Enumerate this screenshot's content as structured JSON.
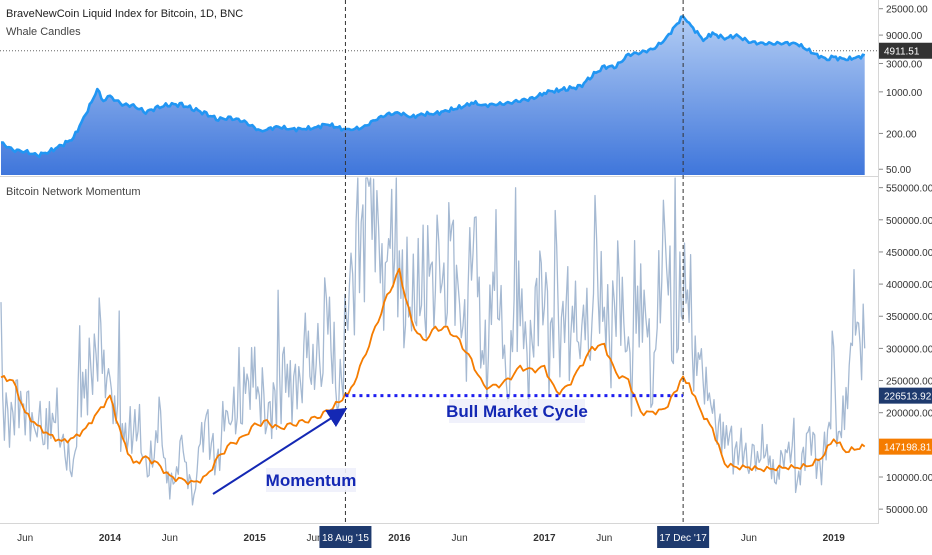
{
  "header": {
    "title": "BraveNewCoin Liquid Index for Bitcoin, 1D, BNC",
    "subtitle": "Whale Candles"
  },
  "lower_pane": {
    "title": "Bitcoin Network Momentum"
  },
  "colors": {
    "price_line": "#2196f3",
    "price_fill_top": "#b3cdf4",
    "price_fill_bottom": "#3f76db",
    "momentum_raw": "#a5b9d2",
    "momentum_ma": "#f57c00",
    "annotation": "#1428b4",
    "axis_label_dark": "#333333",
    "momentum_badge": "#f57c00",
    "level_badge": "#1e3a6e"
  },
  "annotations": {
    "momentum_label": "Momentum",
    "bull_label": "Bull Market Cycle",
    "vline_1_label": "18 Aug '15",
    "vline_2_label": "17 Dec '17"
  },
  "chart_data": [
    {
      "type": "area",
      "title": "BraveNewCoin Liquid Index for Bitcoin, 1D, BNC",
      "subtitle": "Whale Candles",
      "yscale": "log",
      "yticks": [
        "25000.00",
        "9000.00",
        "3000.00",
        "1000.00",
        "200.00",
        "50.00"
      ],
      "ytick_values": [
        25000,
        9000,
        3000,
        1000,
        200,
        50
      ],
      "last_value_label": "4911.51",
      "last_value": 4911.51,
      "x": [
        "2013-04-01",
        "2013-05-01",
        "2013-06-01",
        "2013-07-01",
        "2013-08-01",
        "2013-09-01",
        "2013-10-01",
        "2013-11-01",
        "2013-11-30",
        "2013-12-15",
        "2014-01-01",
        "2014-02-01",
        "2014-03-01",
        "2014-04-01",
        "2014-05-01",
        "2014-06-01",
        "2014-07-01",
        "2014-08-01",
        "2014-09-01",
        "2014-10-01",
        "2014-11-01",
        "2014-12-01",
        "2015-01-15",
        "2015-02-01",
        "2015-03-01",
        "2015-04-01",
        "2015-05-01",
        "2015-06-01",
        "2015-07-01",
        "2015-08-18",
        "2015-09-01",
        "2015-10-01",
        "2015-11-01",
        "2015-12-01",
        "2016-01-01",
        "2016-02-01",
        "2016-03-01",
        "2016-04-01",
        "2016-05-01",
        "2016-06-15",
        "2016-07-01",
        "2016-08-01",
        "2016-09-01",
        "2016-10-01",
        "2016-11-01",
        "2016-12-01",
        "2017-01-05",
        "2017-02-01",
        "2017-03-01",
        "2017-04-01",
        "2017-05-01",
        "2017-06-01",
        "2017-07-01",
        "2017-08-01",
        "2017-09-01",
        "2017-10-01",
        "2017-11-01",
        "2017-12-17",
        "2018-01-01",
        "2018-02-06",
        "2018-03-01",
        "2018-04-01",
        "2018-05-01",
        "2018-06-01",
        "2018-07-01",
        "2018-08-01",
        "2018-09-01",
        "2018-10-01",
        "2018-11-15",
        "2018-12-15",
        "2019-01-01",
        "2019-02-01",
        "2019-03-01",
        "2019-03-20"
      ],
      "values": [
        140,
        105,
        100,
        85,
        100,
        125,
        170,
        420,
        1100,
        720,
        830,
        620,
        580,
        460,
        540,
        620,
        600,
        520,
        420,
        350,
        360,
        330,
        220,
        235,
        260,
        235,
        240,
        245,
        290,
        230,
        235,
        250,
        340,
        420,
        440,
        380,
        420,
        435,
        480,
        580,
        670,
        590,
        620,
        640,
        720,
        760,
        1000,
        1050,
        1150,
        1200,
        1900,
        2600,
        2700,
        4200,
        4600,
        5200,
        7500,
        19000,
        14000,
        7500,
        9500,
        8000,
        8800,
        7000,
        6500,
        6500,
        6600,
        6400,
        4300,
        3500,
        3800,
        3500,
        3800,
        4100
      ],
      "xlim": [
        "2013-04-01",
        "2019-04-05"
      ],
      "ylim": [
        40,
        30000
      ]
    },
    {
      "type": "line",
      "title": "Bitcoin Network Momentum",
      "yticks": [
        "550000.00",
        "500000.00",
        "450000.00",
        "400000.00",
        "350000.00",
        "300000.00",
        "250000.00",
        "200000.00",
        "150000.00",
        "100000.00",
        "50000.00"
      ],
      "ytick_values": [
        550000,
        500000,
        450000,
        400000,
        350000,
        300000,
        250000,
        200000,
        150000,
        100000,
        50000
      ],
      "value_labels": [
        {
          "text": "226513.92",
          "value": 226513.92
        },
        {
          "text": "147198.81",
          "value": 147198.81
        }
      ],
      "x_labels": [
        "Jun",
        "2014",
        "Jun",
        "2015",
        "Jun",
        "2016",
        "Jun",
        "2017",
        "Jun",
        "Jun",
        "2019"
      ],
      "x_label_dates": [
        "2013-06-01",
        "2014-01-01",
        "2014-06-01",
        "2015-01-01",
        "2015-06-01",
        "2016-01-01",
        "2016-06-01",
        "2017-01-01",
        "2017-06-01",
        "2018-06-01",
        "2019-01-01"
      ],
      "series": [
        {
          "kind": "raw",
          "x": [
            "2013-04-01",
            "2013-05-01",
            "2013-06-01",
            "2013-07-01",
            "2013-08-01",
            "2013-09-01",
            "2013-10-01",
            "2013-11-01",
            "2013-12-01",
            "2014-01-01",
            "2014-02-01",
            "2014-03-01",
            "2014-04-01",
            "2014-05-01",
            "2014-06-01",
            "2014-07-01",
            "2014-08-01",
            "2014-09-01",
            "2014-10-01",
            "2014-11-01",
            "2014-12-01",
            "2015-01-01",
            "2015-02-01",
            "2015-03-01",
            "2015-04-01",
            "2015-05-01",
            "2015-06-01",
            "2015-07-01",
            "2015-08-01",
            "2015-09-01",
            "2015-10-01",
            "2015-11-01",
            "2015-12-01",
            "2016-01-01",
            "2016-02-01",
            "2016-03-01",
            "2016-04-01",
            "2016-05-01",
            "2016-06-01",
            "2016-07-01",
            "2016-08-01",
            "2016-09-01",
            "2016-10-01",
            "2016-11-01",
            "2016-12-01",
            "2017-01-01",
            "2017-02-01",
            "2017-03-01",
            "2017-04-01",
            "2017-05-01",
            "2017-06-01",
            "2017-07-01",
            "2017-08-01",
            "2017-09-01",
            "2017-10-01",
            "2017-11-01",
            "2017-12-01",
            "2018-01-01",
            "2018-02-01",
            "2018-03-01",
            "2018-04-01",
            "2018-05-01",
            "2018-06-01",
            "2018-07-01",
            "2018-08-01",
            "2018-09-01",
            "2018-10-01",
            "2018-11-01",
            "2018-12-01",
            "2019-01-01",
            "2019-02-01",
            "2019-03-01",
            "2019-03-20"
          ],
          "values": [
            240000,
            180000,
            250000,
            140000,
            200000,
            160000,
            120000,
            280000,
            300000,
            250000,
            150000,
            200000,
            110000,
            170000,
            90000,
            130000,
            80000,
            180000,
            130000,
            220000,
            200000,
            280000,
            170000,
            260000,
            230000,
            300000,
            250000,
            320000,
            260000,
            350000,
            540000,
            520000,
            420000,
            460000,
            320000,
            440000,
            360000,
            500000,
            330000,
            420000,
            300000,
            380000,
            280000,
            350000,
            300000,
            420000,
            260000,
            380000,
            300000,
            400000,
            330000,
            390000,
            280000,
            350000,
            300000,
            420000,
            340000,
            380000,
            240000,
            200000,
            150000,
            160000,
            110000,
            150000,
            100000,
            140000,
            110000,
            150000,
            130000,
            180000,
            200000,
            380000,
            300000
          ]
        },
        {
          "kind": "moving-average",
          "x": [
            "2013-04-01",
            "2013-05-01",
            "2013-06-01",
            "2013-07-01",
            "2013-08-01",
            "2013-09-01",
            "2013-10-01",
            "2013-11-01",
            "2013-12-01",
            "2014-01-01",
            "2014-02-01",
            "2014-03-01",
            "2014-04-01",
            "2014-05-01",
            "2014-06-01",
            "2014-07-01",
            "2014-08-01",
            "2014-09-01",
            "2014-10-01",
            "2014-11-01",
            "2014-12-01",
            "2015-01-01",
            "2015-02-01",
            "2015-03-01",
            "2015-04-01",
            "2015-05-01",
            "2015-06-01",
            "2015-07-01",
            "2015-08-18",
            "2015-09-01",
            "2015-10-01",
            "2015-11-01",
            "2015-12-01",
            "2016-01-01",
            "2016-02-01",
            "2016-03-01",
            "2016-04-01",
            "2016-05-01",
            "2016-06-01",
            "2016-07-01",
            "2016-08-01",
            "2016-09-01",
            "2016-10-01",
            "2016-11-01",
            "2016-12-01",
            "2017-01-01",
            "2017-02-01",
            "2017-03-01",
            "2017-04-01",
            "2017-05-01",
            "2017-06-01",
            "2017-07-01",
            "2017-08-01",
            "2017-09-01",
            "2017-10-01",
            "2017-11-01",
            "2017-12-17",
            "2018-01-01",
            "2018-02-01",
            "2018-03-01",
            "2018-04-01",
            "2018-05-01",
            "2018-06-01",
            "2018-07-01",
            "2018-08-01",
            "2018-09-01",
            "2018-10-01",
            "2018-11-01",
            "2018-12-01",
            "2019-01-01",
            "2019-02-01",
            "2019-03-01",
            "2019-03-20"
          ],
          "values": [
            255000,
            250000,
            200000,
            180000,
            165000,
            155000,
            160000,
            175000,
            200000,
            225000,
            160000,
            120000,
            130000,
            120000,
            100000,
            95000,
            90000,
            100000,
            130000,
            150000,
            160000,
            180000,
            185000,
            175000,
            180000,
            185000,
            190000,
            200000,
            226000,
            235000,
            280000,
            330000,
            380000,
            420000,
            340000,
            310000,
            330000,
            330000,
            310000,
            280000,
            240000,
            240000,
            250000,
            270000,
            265000,
            270000,
            230000,
            240000,
            270000,
            300000,
            305000,
            260000,
            250000,
            200000,
            200000,
            205000,
            255000,
            245000,
            200000,
            175000,
            120000,
            115000,
            115000,
            112000,
            113000,
            115000,
            115000,
            118000,
            130000,
            160000,
            140000,
            145000,
            147200
          ]
        }
      ],
      "reference_lines": [
        {
          "label": "18 Aug '15",
          "x": "2015-08-18"
        },
        {
          "label": "17 Dec '17",
          "x": "2017-12-17"
        }
      ],
      "horizontal_segment": {
        "value": 226513.92,
        "from": "2015-08-18",
        "to": "2017-12-17"
      },
      "xlim": [
        "2013-04-01",
        "2019-04-05"
      ],
      "ylim": [
        30000,
        565000
      ]
    }
  ]
}
